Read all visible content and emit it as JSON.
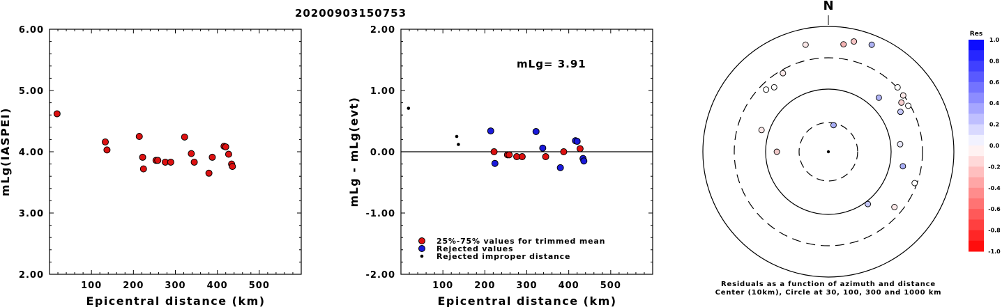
{
  "title": "20200903150753",
  "chart_data": [
    {
      "type": "scatter",
      "xlabel": "Epicentral distance (km)",
      "ylabel": "mLg(IASPEI)",
      "xlim": [
        0,
        600
      ],
      "ylim": [
        2.0,
        6.0
      ],
      "xticks": [
        "100",
        "200",
        "300",
        "400",
        "500"
      ],
      "yticks": [
        "2.00",
        "3.00",
        "4.00",
        "5.00",
        "6.00"
      ],
      "series": [
        {
          "color": "#dd1111",
          "x": [
            18,
            133,
            137,
            214,
            222,
            224,
            254,
            258,
            276,
            289,
            322,
            338,
            345,
            380,
            388,
            416,
            420,
            427,
            434,
            436
          ],
          "y": [
            4.62,
            4.16,
            4.03,
            4.25,
            3.91,
            3.72,
            3.86,
            3.86,
            3.83,
            3.83,
            4.24,
            3.97,
            3.83,
            3.65,
            3.91,
            4.09,
            4.08,
            3.96,
            3.8,
            3.76
          ]
        }
      ]
    },
    {
      "type": "scatter",
      "xlabel": "Epicentral distance (km)",
      "ylabel": "mLg - mLg(evt)",
      "xlim": [
        0,
        600
      ],
      "ylim": [
        -2.0,
        2.0
      ],
      "xticks": [
        "100",
        "200",
        "300",
        "400",
        "500"
      ],
      "yticks": [
        "-2.00",
        "-1.00",
        "0.00",
        "1.00",
        "2.00"
      ],
      "annotation": "mLg= 3.91",
      "zero_line": true,
      "series": [
        {
          "name": "25%-75% values for trimmed mean",
          "color": "#dd1111",
          "x": [
            222,
            254,
            258,
            276,
            289,
            345,
            388,
            427
          ],
          "y": [
            0.0,
            -0.05,
            -0.05,
            -0.08,
            -0.08,
            -0.08,
            0.0,
            0.05
          ]
        },
        {
          "name": "Rejected values",
          "color": "#1a1adc",
          "x": [
            214,
            224,
            322,
            338,
            380,
            416,
            420,
            434,
            436
          ],
          "y": [
            0.34,
            -0.19,
            0.33,
            0.06,
            -0.26,
            0.18,
            0.17,
            -0.11,
            -0.15
          ]
        },
        {
          "name": "Rejected improper distance",
          "color": "#000000",
          "x": [
            18,
            133,
            137
          ],
          "y": [
            0.71,
            0.25,
            0.12
          ]
        }
      ]
    }
  ],
  "polar": {
    "north_label": "N",
    "caption_line1": "Residuals as a function of azimuth and distance",
    "caption_line2": "Center (10km), Circle at 30, 100, 300 and 1000 km",
    "stations": [
      {
        "az": 11,
        "dist": 145,
        "color": "#a8aef5"
      },
      {
        "az": 43,
        "dist": 395,
        "color": "#b0b4f6"
      },
      {
        "az": 61,
        "dist": 440,
        "color": "#c4c6f8"
      },
      {
        "az": 56,
        "dist": 470,
        "color": "#f8d0d0"
      },
      {
        "az": 60,
        "dist": 492,
        "color": "#ffffff"
      },
      {
        "az": 53,
        "dist": 500,
        "color": "#fbe8e8"
      },
      {
        "az": 47,
        "dist": 505,
        "color": "#ffffff"
      },
      {
        "az": 84,
        "dist": 385,
        "color": "#e8e8fb"
      },
      {
        "az": 101,
        "dist": 405,
        "color": "#a8aef5"
      },
      {
        "az": 110,
        "dist": 490,
        "color": "#ffffff"
      },
      {
        "az": 130,
        "dist": 460,
        "color": "#fbe8e8"
      },
      {
        "az": 143,
        "dist": 350,
        "color": "#c4c6f8"
      },
      {
        "az": 8,
        "dist": 580,
        "color": "#f3b3b3"
      },
      {
        "az": 13,
        "dist": 605,
        "color": "#f7c4c4"
      },
      {
        "az": 22,
        "dist": 617,
        "color": "#b0b4f6"
      },
      {
        "az": 270,
        "dist": 275,
        "color": "#f0c8c8"
      },
      {
        "az": 288,
        "dist": 375,
        "color": "#fbe8e8"
      },
      {
        "az": 315,
        "dist": 470,
        "color": "#ffffff"
      },
      {
        "az": 320,
        "dist": 450,
        "color": "#ffffff"
      },
      {
        "az": 330,
        "dist": 485,
        "color": "#fbe8e8"
      },
      {
        "az": 348,
        "dist": 585,
        "color": "#fbe8e8"
      },
      {
        "az": 0,
        "dist": 0,
        "color": "#000000"
      }
    ]
  },
  "colorbar": {
    "title": "Res",
    "labels": [
      "1.0",
      "0.8",
      "0.6",
      "0.4",
      "0.2",
      "0.0",
      "-0.2",
      "-0.4",
      "-0.6",
      "-0.8",
      "-1.0"
    ]
  }
}
